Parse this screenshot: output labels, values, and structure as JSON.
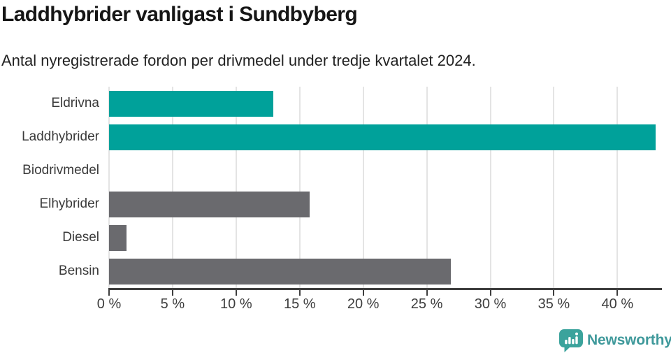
{
  "header": {
    "title": "Laddhybrider vanligast i Sundbyberg",
    "subtitle": "Antal nyregistrerade fordon per drivmedel under tredje kvartalet 2024."
  },
  "colors": {
    "teal": "#00a19a",
    "gray": "#6a6a6e",
    "gridline": "#e4e4e4",
    "axis": "#3e3e3e",
    "title_text": "#161616",
    "label_text": "#3a3a3a",
    "logo_teal": "#3f999b"
  },
  "chart_data": {
    "type": "bar",
    "orientation": "horizontal",
    "title": "Laddhybrider vanligast i Sundbyberg",
    "subtitle": "Antal nyregistrerade fordon per drivmedel under tredje kvartalet 2024.",
    "categories": [
      "Eldrivna",
      "Laddhybrider",
      "Biodrivmedel",
      "Elhybrider",
      "Diesel",
      "Bensin"
    ],
    "values": [
      12.9,
      43.0,
      0,
      15.8,
      1.4,
      26.9
    ],
    "unit": "%",
    "bar_colors": [
      "#00a19a",
      "#00a19a",
      "#6a6a6e",
      "#6a6a6e",
      "#6a6a6e",
      "#6a6a6e"
    ],
    "x_ticks": [
      0,
      5,
      10,
      15,
      20,
      25,
      30,
      35,
      40
    ],
    "x_tick_labels": [
      "0 %",
      "5 %",
      "10 %",
      "15 %",
      "20 %",
      "25 %",
      "30 %",
      "35 %",
      "40 %"
    ],
    "xlim": [
      0,
      43.5
    ],
    "grid": true,
    "legend": false,
    "xlabel": "",
    "ylabel": ""
  },
  "footer": {
    "brand": "Newsworthy",
    "logo_icon": "bar-chart-speech-bubble-icon"
  }
}
